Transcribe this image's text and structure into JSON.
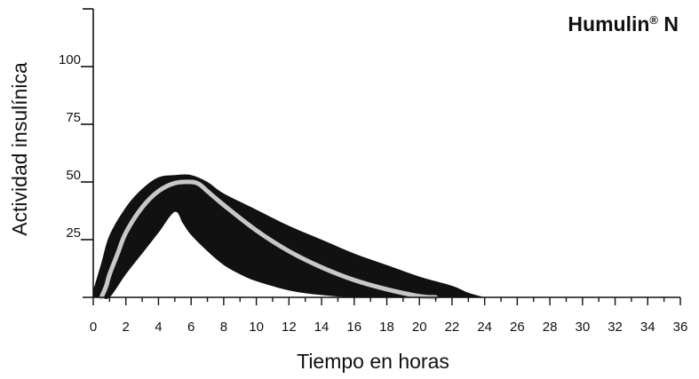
{
  "chart_data": {
    "type": "area",
    "title": "Humulin",
    "title_mark": "®",
    "title_suffix": " N",
    "xlabel": "Tiempo en horas",
    "ylabel": "Actividad insulínica",
    "xlim": [
      0,
      36
    ],
    "ylim": [
      0,
      125
    ],
    "x_ticks": [
      0,
      2,
      4,
      6,
      8,
      10,
      12,
      14,
      16,
      18,
      20,
      22,
      24,
      26,
      28,
      30,
      32,
      34,
      36
    ],
    "y_ticks": [
      25,
      50,
      75,
      100
    ],
    "grid": false,
    "legend": "none",
    "colors": {
      "band": "#111111",
      "mean_line": "#c8c8c8",
      "axis": "#111111",
      "background": "#ffffff"
    },
    "series": [
      {
        "role": "upper",
        "x": [
          0,
          0.5,
          1,
          2,
          3,
          4,
          5,
          6,
          7,
          8,
          10,
          12,
          14,
          16,
          18,
          20,
          22,
          23,
          24
        ],
        "y": [
          3,
          15,
          27,
          39,
          47,
          52,
          53,
          53,
          50,
          45,
          38,
          31,
          25,
          19,
          14,
          9,
          5,
          2,
          0
        ]
      },
      {
        "role": "lower",
        "x": [
          0,
          0.5,
          1,
          2,
          3,
          4,
          5,
          5.5,
          6,
          7,
          8,
          9,
          10,
          12,
          14,
          16,
          18,
          20,
          22,
          23,
          24
        ],
        "y": [
          0,
          0,
          0,
          10,
          19,
          28,
          37,
          32,
          27,
          20,
          14,
          10,
          7,
          3,
          1,
          0,
          0,
          0,
          0,
          0,
          0
        ]
      },
      {
        "role": "mean",
        "x": [
          0.5,
          0.8,
          1,
          1.5,
          2,
          3,
          4,
          5,
          6,
          6.5,
          7,
          8,
          10,
          12,
          14,
          16,
          18,
          20,
          21
        ],
        "y": [
          0,
          5,
          10,
          19,
          28,
          39,
          46,
          49.5,
          50,
          49,
          46,
          40,
          29,
          20,
          13,
          7.5,
          3.5,
          0.5,
          0
        ]
      }
    ]
  }
}
